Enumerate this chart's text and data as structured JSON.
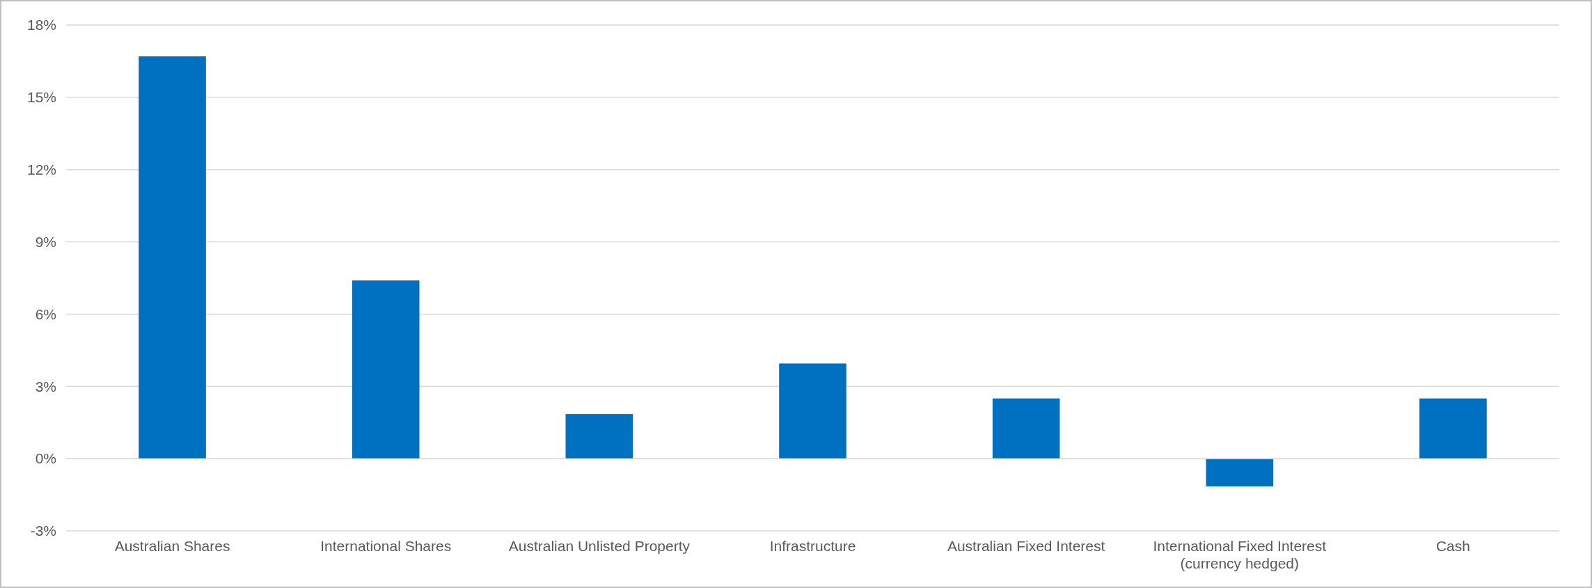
{
  "chart_data": {
    "type": "bar",
    "categories": [
      "Australian Shares",
      "International Shares",
      "Australian Unlisted Property",
      "Infrastructure",
      "Australian Fixed Interest",
      "International Fixed Interest\n(currency hedged)",
      "Cash"
    ],
    "values": [
      16.7,
      7.4,
      1.85,
      3.95,
      2.5,
      -1.15,
      2.5
    ],
    "color": "#0070c0",
    "ylim": [
      -3,
      18
    ],
    "yticks": [
      {
        "value": -3,
        "label": "-3%"
      },
      {
        "value": 0,
        "label": "0%"
      },
      {
        "value": 3,
        "label": "3%"
      },
      {
        "value": 6,
        "label": "6%"
      },
      {
        "value": 9,
        "label": "9%"
      },
      {
        "value": 12,
        "label": "12%"
      },
      {
        "value": 15,
        "label": "15%"
      },
      {
        "value": 18,
        "label": "18%"
      }
    ],
    "grid": "y"
  }
}
